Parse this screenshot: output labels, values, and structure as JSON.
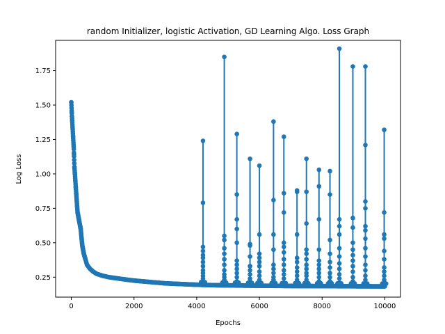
{
  "chart_data": {
    "type": "line",
    "title": "random Initializer, logistic Activation, GD Learning Algo. Loss Graph",
    "xlabel": "Epochs",
    "ylabel": "Log Loss",
    "xlim": [
      -500,
      10500
    ],
    "ylim": [
      0.105,
      1.97
    ],
    "xticks": [
      0,
      2000,
      4000,
      6000,
      8000,
      10000
    ],
    "xtick_labels": [
      "0",
      "2000",
      "4000",
      "6000",
      "8000",
      "10000"
    ],
    "yticks": [
      0.25,
      0.5,
      0.75,
      1.0,
      1.25,
      1.5,
      1.75
    ],
    "ytick_labels": [
      "0.25",
      "0.50",
      "0.75",
      "1.00",
      "1.25",
      "1.50",
      "1.75"
    ],
    "grid": false,
    "legend": "none",
    "series": [
      {
        "color": "#1f77b4",
        "marker": "circle",
        "baseline_curve": {
          "x": [
            0,
            20,
            50,
            80,
            100,
            150,
            200,
            250,
            300,
            350,
            400,
            450,
            500,
            600,
            700,
            800,
            1000,
            1200,
            1500,
            2000,
            2500,
            3000,
            3500,
            4000,
            4500,
            5000,
            6000,
            7000,
            8000,
            9000,
            10000
          ],
          "y": [
            1.52,
            1.42,
            1.3,
            1.18,
            1.05,
            0.88,
            0.72,
            0.66,
            0.6,
            0.48,
            0.42,
            0.38,
            0.34,
            0.31,
            0.29,
            0.275,
            0.26,
            0.25,
            0.24,
            0.225,
            0.215,
            0.205,
            0.2,
            0.195,
            0.192,
            0.19,
            0.188,
            0.186,
            0.185,
            0.184,
            0.183
          ]
        },
        "spikes": [
          {
            "x": 4200,
            "peak": 1.24,
            "mids": [
              0.79,
              0.47,
              0.44,
              0.41,
              0.39,
              0.36,
              0.33,
              0.3,
              0.28,
              0.26,
              0.24,
              0.22
            ]
          },
          {
            "x": 4880,
            "peak": 1.85,
            "mids": [
              0.55,
              0.52,
              0.46,
              0.42,
              0.38,
              0.34,
              0.3,
              0.27,
              0.25,
              0.23,
              0.21
            ]
          },
          {
            "x": 5280,
            "peak": 1.29,
            "mids": [
              0.85,
              0.67,
              0.6,
              0.5,
              0.37,
              0.34,
              0.31,
              0.28,
              0.25,
              0.22,
              0.2
            ]
          },
          {
            "x": 5700,
            "peak": 1.11,
            "mids": [
              0.49,
              0.48,
              0.4,
              0.33,
              0.3,
              0.27,
              0.24,
              0.22,
              0.2
            ]
          },
          {
            "x": 6000,
            "peak": 1.06,
            "mids": [
              0.56,
              0.42,
              0.39,
              0.36,
              0.33,
              0.29,
              0.26,
              0.23,
              0.21
            ]
          },
          {
            "x": 6450,
            "peak": 1.38,
            "mids": [
              0.81,
              0.56,
              0.45,
              0.34,
              0.31,
              0.28,
              0.25,
              0.23,
              0.21
            ]
          },
          {
            "x": 6780,
            "peak": 1.27,
            "mids": [
              0.86,
              0.72,
              0.5,
              0.47,
              0.43,
              0.38,
              0.34,
              0.3,
              0.27,
              0.24,
              0.21
            ]
          },
          {
            "x": 7200,
            "peak": 0.88,
            "mids": [
              0.87,
              0.56,
              0.39,
              0.36,
              0.32,
              0.29,
              0.26,
              0.23,
              0.21
            ]
          },
          {
            "x": 7500,
            "peak": 1.11,
            "mids": [
              0.87,
              0.64,
              0.45,
              0.42,
              0.38,
              0.34,
              0.31,
              0.28,
              0.26,
              0.23,
              0.21
            ]
          },
          {
            "x": 7900,
            "peak": 1.03,
            "mids": [
              0.91,
              0.67,
              0.45,
              0.37,
              0.34,
              0.31,
              0.28,
              0.25,
              0.22,
              0.2
            ]
          },
          {
            "x": 8250,
            "peak": 1.02,
            "mids": [
              0.85,
              0.52,
              0.42,
              0.36,
              0.32,
              0.28,
              0.25,
              0.22,
              0.2
            ]
          },
          {
            "x": 8550,
            "peak": 1.91,
            "mids": [
              0.67,
              0.62,
              0.56,
              0.46,
              0.4,
              0.35,
              0.31,
              0.27,
              0.24,
              0.21
            ]
          },
          {
            "x": 8980,
            "peak": 1.78,
            "mids": [
              0.68,
              0.61,
              0.5,
              0.45,
              0.41,
              0.37,
              0.33,
              0.29,
              0.25,
              0.22,
              0.2
            ]
          },
          {
            "x": 9380,
            "peak": 1.78,
            "mids": [
              1.21,
              0.8,
              0.75,
              0.62,
              0.59,
              0.53,
              0.46,
              0.4,
              0.34,
              0.3,
              0.26,
              0.23,
              0.2
            ]
          },
          {
            "x": 9980,
            "peak": 1.32,
            "mids": [
              0.72,
              0.56,
              0.53,
              0.44,
              0.38,
              0.32,
              0.29,
              0.26,
              0.23,
              0.21,
              0.19
            ]
          }
        ]
      }
    ]
  }
}
